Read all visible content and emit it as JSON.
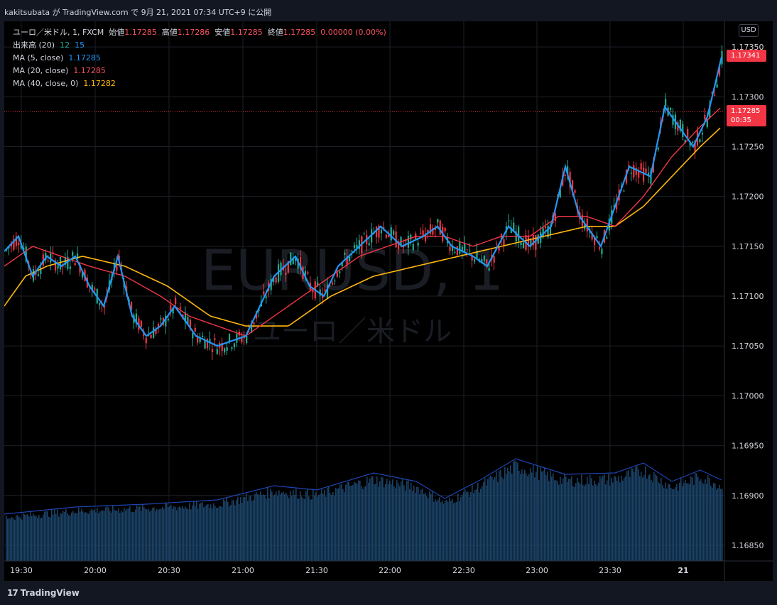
{
  "header": {
    "publish_line": "kakitsubata が TradingView.com で 9月 21, 2021 07:34 UTC+9 に公開"
  },
  "legend": {
    "symbol": "ユーロ／米ドル, 1, FXCM",
    "open_label": "始値",
    "open": "1.17285",
    "high_label": "高値",
    "high": "1.17286",
    "low_label": "安値",
    "low": "1.17285",
    "close_label": "終値",
    "close": "1.17285",
    "change": "0.00000 (0.00%)",
    "volume_label": "出来高 (20)",
    "volume_a": "12",
    "volume_b": "15",
    "ma5_label": "MA (5, close)",
    "ma5_value": "1.17285",
    "ma20_label": "MA (20, close)",
    "ma20_value": "1.17285",
    "ma40_label": "MA (40, close, 0)",
    "ma40_value": "1.17282"
  },
  "watermark": {
    "symbol": "EURUSD, 1",
    "name": "ユーロ／米ドル"
  },
  "currency_button": "USD",
  "price_tags": {
    "last": "1.17341",
    "current": "1.17285",
    "countdown": "00:35"
  },
  "footer": {
    "brand": "TradingView",
    "logo_glyph": "17"
  },
  "colors": {
    "background": "#000000",
    "up": "#22ab94",
    "down": "#f23645",
    "ma5": "#2196f3",
    "ma20": "#f23645",
    "ma40": "#ffb70f",
    "volume": "#1f4e79"
  },
  "chart_data": {
    "type": "candlestick",
    "ylim": [
      1.1684,
      1.1737
    ],
    "y_ticks": [
      "1.17350",
      "1.17300",
      "1.17250",
      "1.17200",
      "1.17150",
      "1.17100",
      "1.17050",
      "1.17000",
      "1.16950",
      "1.16900",
      "1.16850"
    ],
    "x_ticks": [
      "19:30",
      "20:00",
      "20:30",
      "21:00",
      "21:30",
      "22:00",
      "22:30",
      "23:00",
      "23:30",
      "21"
    ],
    "x_range": [
      "19:27",
      "00:05"
    ],
    "current_price_line": 1.17285,
    "ma5": [
      [
        0,
        1.17145
      ],
      [
        20,
        1.1716
      ],
      [
        40,
        1.1712
      ],
      [
        60,
        1.1714
      ],
      [
        80,
        1.1713
      ],
      [
        100,
        1.1714
      ],
      [
        120,
        1.1711
      ],
      [
        140,
        1.1709
      ],
      [
        160,
        1.1714
      ],
      [
        180,
        1.1708
      ],
      [
        200,
        1.1706
      ],
      [
        220,
        1.1707
      ],
      [
        240,
        1.1709
      ],
      [
        270,
        1.1706
      ],
      [
        300,
        1.1705
      ],
      [
        340,
        1.1706
      ],
      [
        360,
        1.1709
      ],
      [
        380,
        1.1712
      ],
      [
        410,
        1.1714
      ],
      [
        430,
        1.1711
      ],
      [
        450,
        1.171
      ],
      [
        470,
        1.1713
      ],
      [
        500,
        1.1715
      ],
      [
        530,
        1.1717
      ],
      [
        560,
        1.1715
      ],
      [
        590,
        1.1716
      ],
      [
        610,
        1.1717
      ],
      [
        630,
        1.1715
      ],
      [
        660,
        1.1714
      ],
      [
        680,
        1.1713
      ],
      [
        710,
        1.1717
      ],
      [
        740,
        1.1715
      ],
      [
        770,
        1.1717
      ],
      [
        790,
        1.1723
      ],
      [
        810,
        1.1718
      ],
      [
        840,
        1.1715
      ],
      [
        860,
        1.1719
      ],
      [
        880,
        1.1723
      ],
      [
        910,
        1.1722
      ],
      [
        930,
        1.1729
      ],
      [
        950,
        1.1727
      ],
      [
        970,
        1.1725
      ],
      [
        990,
        1.1728
      ],
      [
        1010,
        1.1734
      ]
    ],
    "ma20": [
      [
        0,
        1.1713
      ],
      [
        40,
        1.1715
      ],
      [
        80,
        1.1714
      ],
      [
        120,
        1.1713
      ],
      [
        170,
        1.1712
      ],
      [
        220,
        1.171
      ],
      [
        260,
        1.1708
      ],
      [
        300,
        1.1707
      ],
      [
        340,
        1.1706
      ],
      [
        380,
        1.1708
      ],
      [
        420,
        1.171
      ],
      [
        460,
        1.1712
      ],
      [
        500,
        1.1714
      ],
      [
        540,
        1.1715
      ],
      [
        580,
        1.1716
      ],
      [
        620,
        1.1716
      ],
      [
        660,
        1.1715
      ],
      [
        700,
        1.1716
      ],
      [
        740,
        1.1716
      ],
      [
        780,
        1.1718
      ],
      [
        820,
        1.1718
      ],
      [
        860,
        1.1717
      ],
      [
        900,
        1.172
      ],
      [
        940,
        1.1724
      ],
      [
        980,
        1.1727
      ],
      [
        1010,
        1.1729
      ]
    ],
    "ma40": [
      [
        0,
        1.1709
      ],
      [
        30,
        1.1712
      ],
      [
        60,
        1.1713
      ],
      [
        110,
        1.1714
      ],
      [
        170,
        1.1713
      ],
      [
        230,
        1.1711
      ],
      [
        290,
        1.1708
      ],
      [
        340,
        1.1707
      ],
      [
        400,
        1.1707
      ],
      [
        460,
        1.171
      ],
      [
        520,
        1.1712
      ],
      [
        580,
        1.1713
      ],
      [
        640,
        1.1714
      ],
      [
        700,
        1.1715
      ],
      [
        760,
        1.1716
      ],
      [
        820,
        1.1717
      ],
      [
        860,
        1.1717
      ],
      [
        900,
        1.1719
      ],
      [
        940,
        1.1722
      ],
      [
        980,
        1.1725
      ],
      [
        1010,
        1.1727
      ]
    ],
    "volume_envelope": [
      [
        0,
        0.33
      ],
      [
        100,
        0.38
      ],
      [
        200,
        0.4
      ],
      [
        300,
        0.43
      ],
      [
        380,
        0.53
      ],
      [
        440,
        0.5
      ],
      [
        520,
        0.62
      ],
      [
        580,
        0.56
      ],
      [
        620,
        0.44
      ],
      [
        670,
        0.57
      ],
      [
        720,
        0.72
      ],
      [
        790,
        0.61
      ],
      [
        860,
        0.62
      ],
      [
        900,
        0.69
      ],
      [
        940,
        0.56
      ],
      [
        980,
        0.64
      ],
      [
        1010,
        0.57
      ]
    ]
  }
}
